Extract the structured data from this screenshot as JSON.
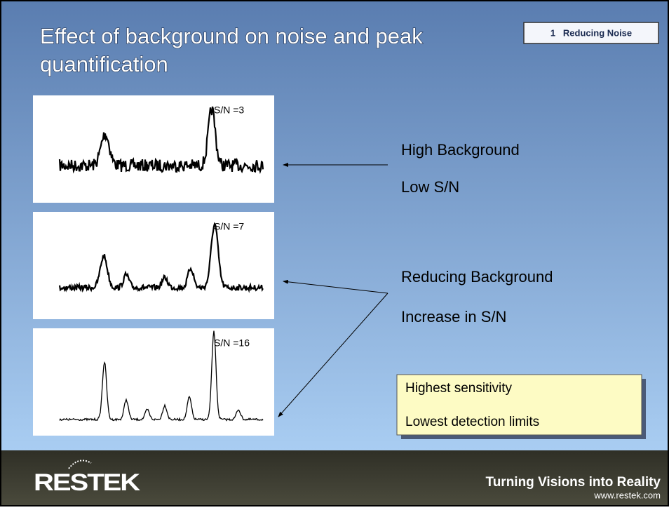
{
  "header": {
    "title_line1": "Effect of background on noise and peak",
    "title_line2": "quantification",
    "badge": "1   Reducing Noise"
  },
  "panels": [
    {
      "label": "S/N =3"
    },
    {
      "label": "S/N =7"
    },
    {
      "label": "S/N =16"
    }
  ],
  "labels": [
    "High Background",
    "Low S/N",
    "Reducing Background",
    "Increase in S/N"
  ],
  "callout": [
    "Highest sensitivity",
    "Lowest detection limits"
  ],
  "footer": {
    "logo": "RESTEK",
    "tagline": "Turning Visions into Reality",
    "url": "www.restek.com"
  }
}
